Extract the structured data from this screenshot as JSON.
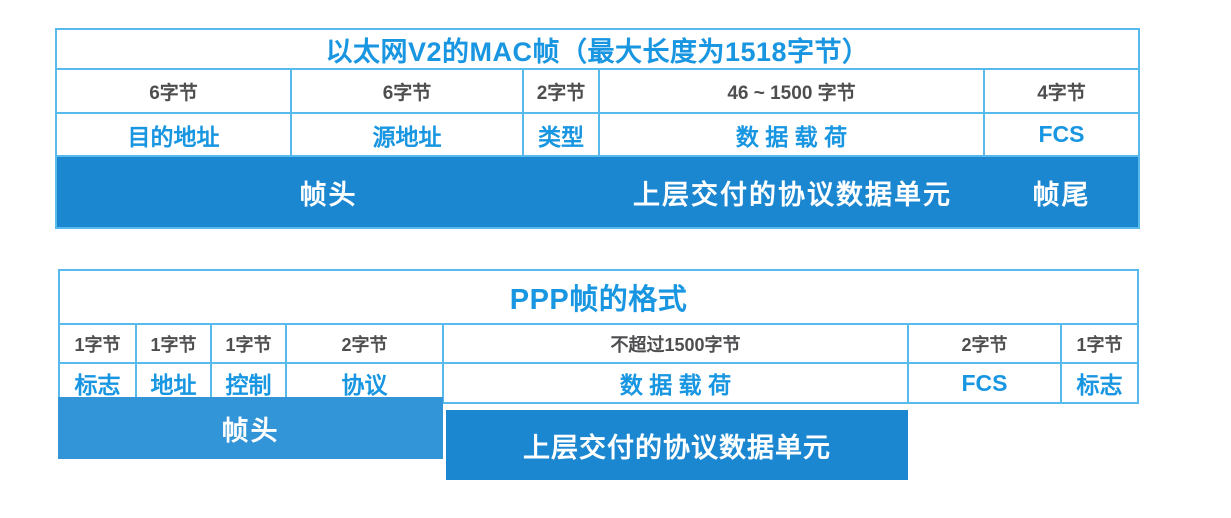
{
  "colors": {
    "bar_blue": "#1b87d0",
    "bar_blue_light": "#3295d7",
    "border_blue": "#58baec",
    "text_blue": "#1896e1",
    "text_grey": "#4e4e50"
  },
  "ethernet_table": {
    "title": "以太网V2的MAC帧（最大长度为1518字节）",
    "size_row": [
      "6字节",
      "6字节",
      "2字节",
      "46 ~ 1500 字节",
      "4字节"
    ],
    "field_row": [
      "目的地址",
      "源地址",
      "类型",
      "数 据 载 荷",
      "FCS"
    ],
    "footer": {
      "header_label": "帧头",
      "payload_label": "上层交付的协议数据单元",
      "trailer_label": "帧尾"
    }
  },
  "ppp_table": {
    "title": "PPP帧的格式",
    "size_row": [
      "1字节",
      "1字节",
      "1字节",
      "2字节",
      "不超过1500字节",
      "2字节",
      "1字节"
    ],
    "field_row": [
      "标志",
      "地址",
      "控制",
      "协议",
      "数 据 载 荷",
      "FCS",
      "标志"
    ],
    "header_label": "帧头",
    "payload_label": "上层交付的协议数据单元"
  }
}
